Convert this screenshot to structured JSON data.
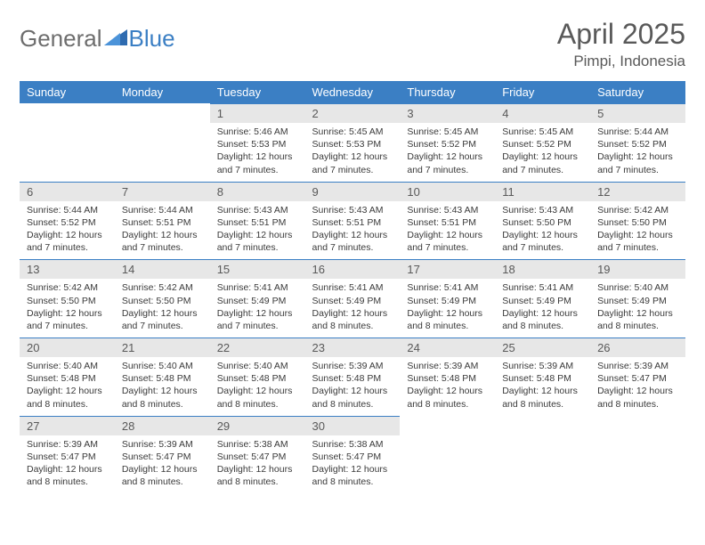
{
  "logo": {
    "word1": "General",
    "word2": "Blue"
  },
  "title": "April 2025",
  "location": "Pimpi, Indonesia",
  "colors": {
    "header_bg": "#3b7fc4",
    "header_text": "#ffffff",
    "daynum_bg": "#e7e7e7",
    "border": "#3b7fc4",
    "text": "#3a3a3a",
    "title": "#595959"
  },
  "weekdays": [
    "Sunday",
    "Monday",
    "Tuesday",
    "Wednesday",
    "Thursday",
    "Friday",
    "Saturday"
  ],
  "weeks": [
    [
      null,
      null,
      {
        "n": "1",
        "sr": "5:46 AM",
        "ss": "5:53 PM",
        "dl": "12 hours and 7 minutes."
      },
      {
        "n": "2",
        "sr": "5:45 AM",
        "ss": "5:53 PM",
        "dl": "12 hours and 7 minutes."
      },
      {
        "n": "3",
        "sr": "5:45 AM",
        "ss": "5:52 PM",
        "dl": "12 hours and 7 minutes."
      },
      {
        "n": "4",
        "sr": "5:45 AM",
        "ss": "5:52 PM",
        "dl": "12 hours and 7 minutes."
      },
      {
        "n": "5",
        "sr": "5:44 AM",
        "ss": "5:52 PM",
        "dl": "12 hours and 7 minutes."
      }
    ],
    [
      {
        "n": "6",
        "sr": "5:44 AM",
        "ss": "5:52 PM",
        "dl": "12 hours and 7 minutes."
      },
      {
        "n": "7",
        "sr": "5:44 AM",
        "ss": "5:51 PM",
        "dl": "12 hours and 7 minutes."
      },
      {
        "n": "8",
        "sr": "5:43 AM",
        "ss": "5:51 PM",
        "dl": "12 hours and 7 minutes."
      },
      {
        "n": "9",
        "sr": "5:43 AM",
        "ss": "5:51 PM",
        "dl": "12 hours and 7 minutes."
      },
      {
        "n": "10",
        "sr": "5:43 AM",
        "ss": "5:51 PM",
        "dl": "12 hours and 7 minutes."
      },
      {
        "n": "11",
        "sr": "5:43 AM",
        "ss": "5:50 PM",
        "dl": "12 hours and 7 minutes."
      },
      {
        "n": "12",
        "sr": "5:42 AM",
        "ss": "5:50 PM",
        "dl": "12 hours and 7 minutes."
      }
    ],
    [
      {
        "n": "13",
        "sr": "5:42 AM",
        "ss": "5:50 PM",
        "dl": "12 hours and 7 minutes."
      },
      {
        "n": "14",
        "sr": "5:42 AM",
        "ss": "5:50 PM",
        "dl": "12 hours and 7 minutes."
      },
      {
        "n": "15",
        "sr": "5:41 AM",
        "ss": "5:49 PM",
        "dl": "12 hours and 7 minutes."
      },
      {
        "n": "16",
        "sr": "5:41 AM",
        "ss": "5:49 PM",
        "dl": "12 hours and 8 minutes."
      },
      {
        "n": "17",
        "sr": "5:41 AM",
        "ss": "5:49 PM",
        "dl": "12 hours and 8 minutes."
      },
      {
        "n": "18",
        "sr": "5:41 AM",
        "ss": "5:49 PM",
        "dl": "12 hours and 8 minutes."
      },
      {
        "n": "19",
        "sr": "5:40 AM",
        "ss": "5:49 PM",
        "dl": "12 hours and 8 minutes."
      }
    ],
    [
      {
        "n": "20",
        "sr": "5:40 AM",
        "ss": "5:48 PM",
        "dl": "12 hours and 8 minutes."
      },
      {
        "n": "21",
        "sr": "5:40 AM",
        "ss": "5:48 PM",
        "dl": "12 hours and 8 minutes."
      },
      {
        "n": "22",
        "sr": "5:40 AM",
        "ss": "5:48 PM",
        "dl": "12 hours and 8 minutes."
      },
      {
        "n": "23",
        "sr": "5:39 AM",
        "ss": "5:48 PM",
        "dl": "12 hours and 8 minutes."
      },
      {
        "n": "24",
        "sr": "5:39 AM",
        "ss": "5:48 PM",
        "dl": "12 hours and 8 minutes."
      },
      {
        "n": "25",
        "sr": "5:39 AM",
        "ss": "5:48 PM",
        "dl": "12 hours and 8 minutes."
      },
      {
        "n": "26",
        "sr": "5:39 AM",
        "ss": "5:47 PM",
        "dl": "12 hours and 8 minutes."
      }
    ],
    [
      {
        "n": "27",
        "sr": "5:39 AM",
        "ss": "5:47 PM",
        "dl": "12 hours and 8 minutes."
      },
      {
        "n": "28",
        "sr": "5:39 AM",
        "ss": "5:47 PM",
        "dl": "12 hours and 8 minutes."
      },
      {
        "n": "29",
        "sr": "5:38 AM",
        "ss": "5:47 PM",
        "dl": "12 hours and 8 minutes."
      },
      {
        "n": "30",
        "sr": "5:38 AM",
        "ss": "5:47 PM",
        "dl": "12 hours and 8 minutes."
      },
      null,
      null,
      null
    ]
  ],
  "labels": {
    "sunrise": "Sunrise: ",
    "sunset": "Sunset: ",
    "daylight": "Daylight: "
  }
}
